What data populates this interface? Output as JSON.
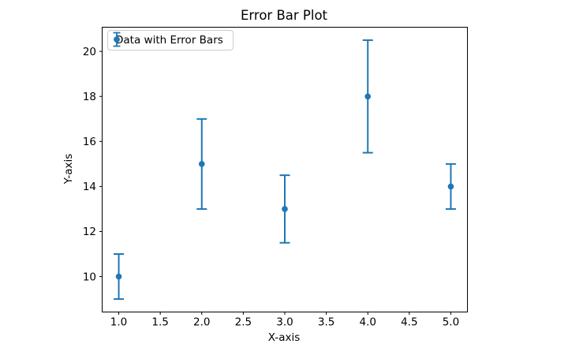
{
  "chart_data": {
    "type": "scatter",
    "title": "Error Bar Plot",
    "xlabel": "X-axis",
    "ylabel": "Y-axis",
    "legend": [
      "Data with Error Bars"
    ],
    "legend_position": "upper left",
    "x": [
      1,
      2,
      3,
      4,
      5
    ],
    "y": [
      10,
      15,
      13,
      18,
      14
    ],
    "yerr": [
      1,
      2,
      1.5,
      2.5,
      1
    ],
    "xlim": [
      0.8,
      5.2
    ],
    "ylim": [
      8.425,
      21.075
    ],
    "xticks": [
      1.0,
      1.5,
      2.0,
      2.5,
      3.0,
      3.5,
      4.0,
      4.5,
      5.0
    ],
    "xtick_labels": [
      "1.0",
      "1.5",
      "2.0",
      "2.5",
      "3.0",
      "3.5",
      "4.0",
      "4.5",
      "5.0"
    ],
    "yticks": [
      10,
      12,
      14,
      16,
      18,
      20
    ],
    "ytick_labels": [
      "10",
      "12",
      "14",
      "16",
      "18",
      "20"
    ],
    "grid": false,
    "marker": "o",
    "capsize": 5,
    "series_color": "#1f77b4",
    "spine_color": "#000000",
    "background_color": "#ffffff"
  }
}
